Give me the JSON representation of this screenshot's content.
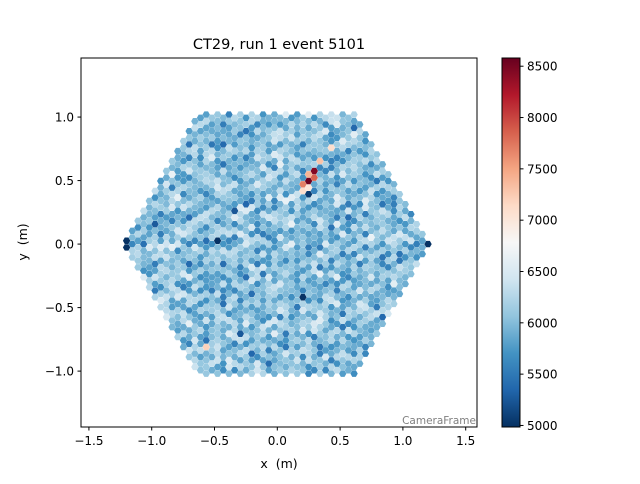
{
  "chart_data": {
    "type": "heatmap",
    "subtype": "hexagonal camera image",
    "title": "CT29, run 1 event 5101",
    "xlabel": "x  (m)",
    "ylabel": "y  (m)",
    "xlim": [
      -1.563,
      1.59
    ],
    "ylim": [
      -1.44,
      1.465
    ],
    "xticks": [
      -1.5,
      -1.0,
      -0.5,
      0.0,
      0.5,
      1.0,
      1.5
    ],
    "xtick_labels": [
      "−1.5",
      "−1.0",
      "−0.5",
      "0.0",
      "0.5",
      "1.0",
      "1.5"
    ],
    "yticks": [
      -1.0,
      -0.5,
      0.0,
      0.5,
      1.0
    ],
    "ytick_labels": [
      "−1.0",
      "−0.5",
      "0.0",
      "0.5",
      "1.0"
    ],
    "grid": false,
    "frame_label": "CameraFrame",
    "camera_outline": "hexagon, vertices at x=±1.2, y=0 and x=±0.6, y=±1.04",
    "colormap": "RdBu_r",
    "colormap_stops": [
      "#053061",
      "#2166ac",
      "#4393c3",
      "#92c5de",
      "#d1e5f0",
      "#f7f7f7",
      "#fddbc7",
      "#f4a582",
      "#d6604d",
      "#b2182b",
      "#67001f"
    ],
    "color_range": [
      4985,
      8580
    ],
    "colorbar": {
      "ticks": [
        5000,
        5500,
        6000,
        6500,
        7000,
        7500,
        8000,
        8500
      ],
      "tick_labels": [
        "5000",
        "5500",
        "6000",
        "6500",
        "7000",
        "7500",
        "8000",
        "8500"
      ]
    },
    "background_level": {
      "mean": 6000,
      "spread": 260
    },
    "highlights": [
      [
        0.293,
        0.6,
        8550
      ],
      [
        0.293,
        0.55,
        8450
      ],
      [
        0.248,
        0.525,
        8500
      ],
      [
        0.248,
        0.48,
        8550
      ],
      [
        0.293,
        0.5,
        7850
      ],
      [
        0.248,
        0.57,
        7400
      ],
      [
        0.333,
        0.628,
        7300
      ],
      [
        0.203,
        0.45,
        7700
      ],
      [
        0.248,
        0.44,
        7000
      ],
      [
        0.203,
        0.4,
        7100
      ],
      [
        0.248,
        0.4,
        5050
      ],
      [
        0.42,
        0.77,
        7100
      ],
      [
        -0.58,
        -0.79,
        7200
      ],
      [
        -0.45,
        0.026,
        5000
      ],
      [
        0.203,
        -0.4,
        5000
      ],
      [
        -1.195,
        0.026,
        5000
      ],
      [
        -1.195,
        -0.026,
        5000
      ],
      [
        1.2,
        0.0,
        5000
      ]
    ]
  }
}
